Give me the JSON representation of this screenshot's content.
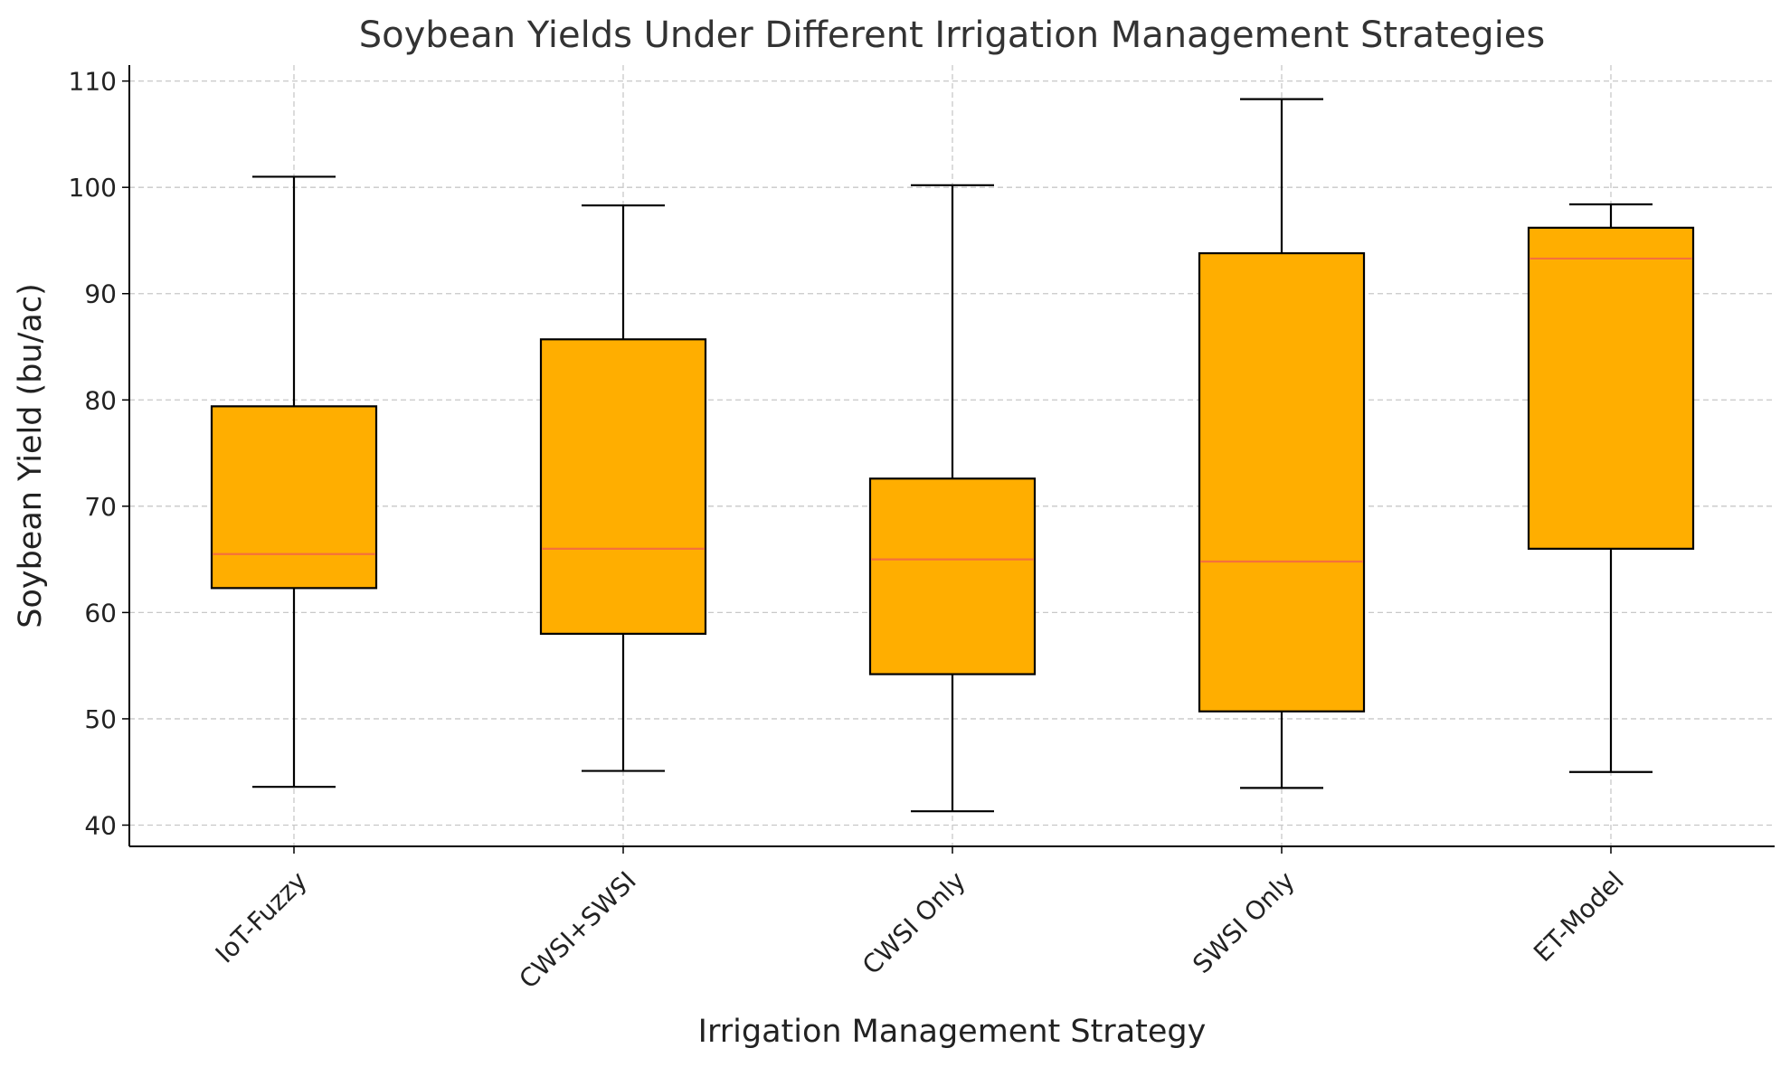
{
  "chart_data": {
    "type": "box",
    "title": "Soybean Yields Under Different Irrigation Management Strategies",
    "xlabel": "Irrigation Management Strategy",
    "ylabel": "Soybean Yield (bu/ac)",
    "ylim": [
      38,
      111.5
    ],
    "yticks": [
      40,
      50,
      60,
      70,
      80,
      90,
      100,
      110
    ],
    "grid": true,
    "categories": [
      "IoT-Fuzzy",
      "CWSI+SWSI",
      "CWSI Only",
      "SWSI Only",
      "ET-Model"
    ],
    "boxes": [
      {
        "category": "IoT-Fuzzy",
        "whisker_low": 43.6,
        "q1": 62.3,
        "median": 65.5,
        "q3": 79.4,
        "whisker_high": 101.0
      },
      {
        "category": "CWSI+SWSI",
        "whisker_low": 45.1,
        "q1": 58.0,
        "median": 66.0,
        "q3": 85.7,
        "whisker_high": 98.3
      },
      {
        "category": "CWSI Only",
        "whisker_low": 41.3,
        "q1": 54.2,
        "median": 65.0,
        "q3": 72.6,
        "whisker_high": 100.2
      },
      {
        "category": "SWSI Only",
        "whisker_low": 43.5,
        "q1": 50.7,
        "median": 64.8,
        "q3": 93.8,
        "whisker_high": 108.3
      },
      {
        "category": "ET-Model",
        "whisker_low": 45.0,
        "q1": 66.0,
        "median": 93.3,
        "q3": 96.2,
        "whisker_high": 98.4
      }
    ],
    "colors": {
      "box_fill": "#FFAE00",
      "median_line": "#F5713B",
      "box_edge": "#000000",
      "grid": "#c8c8c8",
      "axis": "#000000"
    }
  }
}
